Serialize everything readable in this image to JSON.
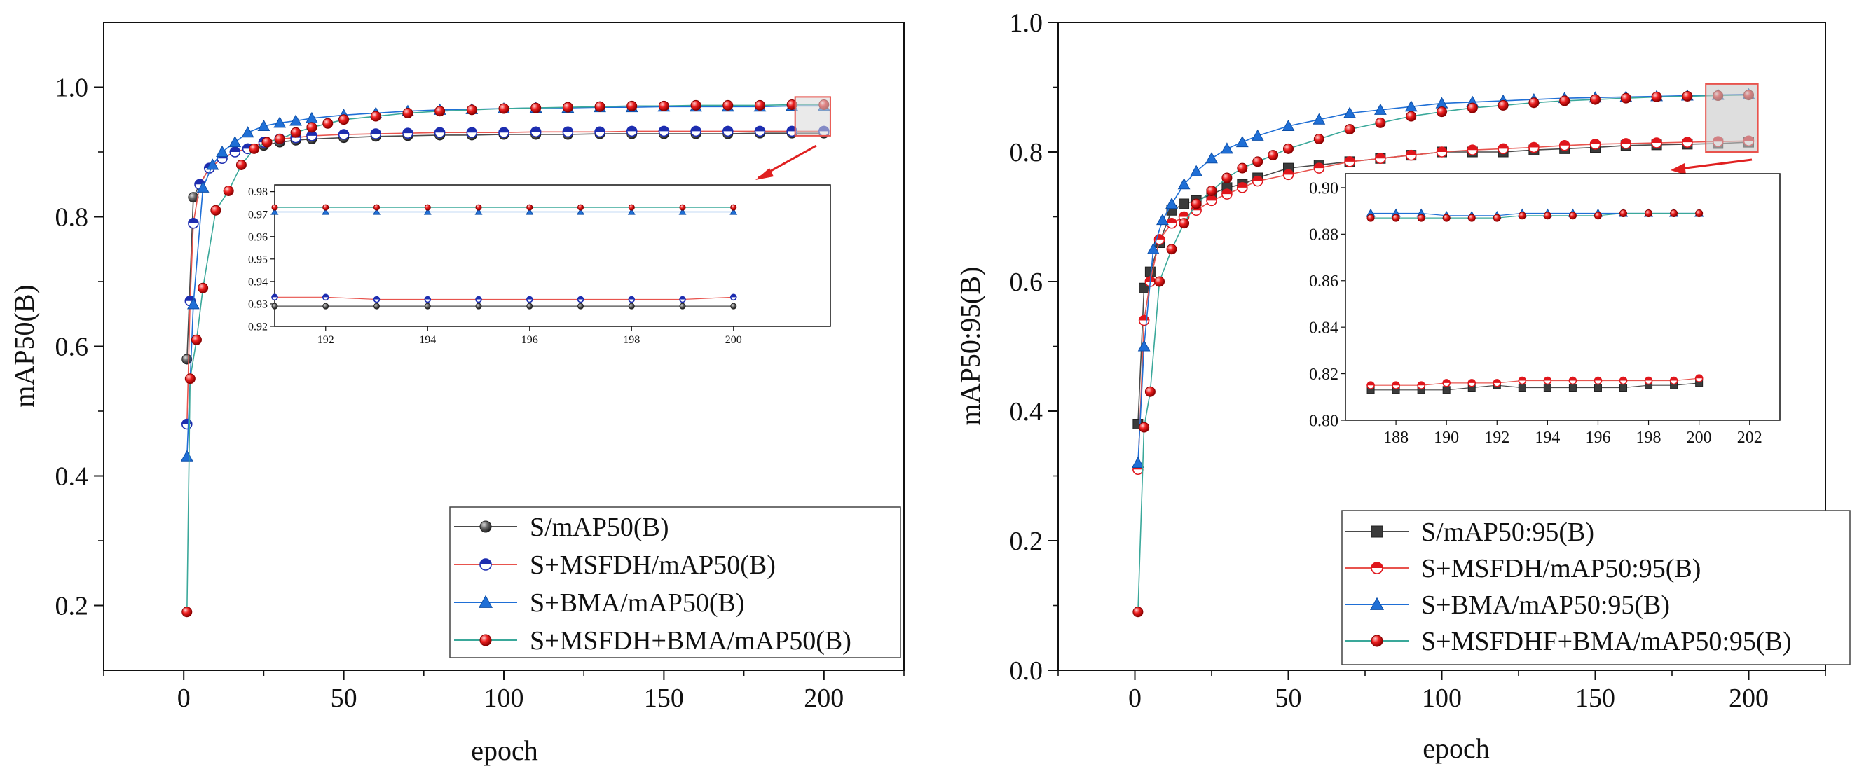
{
  "colors": {
    "s_marker": "#4a4a4a",
    "msfdh_line": "#e8534d",
    "msfdh_marker": "#1d2db0",
    "bma": "#1f6fd6",
    "final_line": "#3aa89a",
    "final_marker": "#e0161c",
    "zoom_box": "#e8534d"
  },
  "chart_data": [
    {
      "type": "line",
      "xlabel": "epoch",
      "ylabel": "mAP50(B)",
      "xlim": [
        -25,
        225
      ],
      "ylim": [
        0.1,
        1.1
      ],
      "xticks": [
        0,
        50,
        100,
        150,
        200
      ],
      "yticks": [
        0.2,
        0.4,
        0.6,
        0.8,
        1.0
      ],
      "xtick_labels": [
        "0",
        "50",
        "100",
        "150",
        "200"
      ],
      "ytick_labels": [
        "0.2",
        "0.4",
        "0.6",
        "0.8",
        "1.0"
      ],
      "legend_position": "bottom-right",
      "series": [
        {
          "name": "S/mAP50(B)",
          "marker": "sphere-gray",
          "x": [
            1,
            3,
            5,
            8,
            12,
            16,
            20,
            25,
            30,
            35,
            40,
            50,
            60,
            70,
            80,
            90,
            100,
            110,
            120,
            130,
            140,
            150,
            160,
            170,
            180,
            190,
            200
          ],
          "y": [
            0.58,
            0.83,
            0.85,
            0.875,
            0.89,
            0.9,
            0.905,
            0.91,
            0.915,
            0.918,
            0.92,
            0.922,
            0.924,
            0.925,
            0.926,
            0.926,
            0.927,
            0.927,
            0.927,
            0.928,
            0.928,
            0.928,
            0.928,
            0.928,
            0.929,
            0.929,
            0.929
          ]
        },
        {
          "name": "S+MSFDH/mAP50(B)",
          "marker": "half-blue",
          "x": [
            1,
            2,
            3,
            5,
            8,
            12,
            16,
            20,
            25,
            30,
            35,
            40,
            50,
            60,
            70,
            80,
            90,
            100,
            110,
            120,
            130,
            140,
            150,
            160,
            170,
            180,
            190,
            200
          ],
          "y": [
            0.48,
            0.67,
            0.79,
            0.85,
            0.875,
            0.89,
            0.9,
            0.905,
            0.915,
            0.92,
            0.922,
            0.925,
            0.927,
            0.928,
            0.929,
            0.93,
            0.93,
            0.93,
            0.931,
            0.931,
            0.931,
            0.932,
            0.932,
            0.932,
            0.932,
            0.932,
            0.932,
            0.932
          ]
        },
        {
          "name": "S+BMA/mAP50(B)",
          "marker": "triangle-blue",
          "x": [
            1,
            3,
            6,
            9,
            12,
            16,
            20,
            25,
            30,
            35,
            40,
            50,
            60,
            70,
            80,
            90,
            100,
            110,
            120,
            130,
            140,
            150,
            160,
            170,
            180,
            190,
            200
          ],
          "y": [
            0.43,
            0.665,
            0.845,
            0.88,
            0.9,
            0.915,
            0.93,
            0.94,
            0.945,
            0.948,
            0.952,
            0.957,
            0.96,
            0.963,
            0.965,
            0.966,
            0.967,
            0.968,
            0.968,
            0.969,
            0.969,
            0.97,
            0.97,
            0.97,
            0.97,
            0.971,
            0.971
          ]
        },
        {
          "name": "S+MSFDH+BMA/mAP50(B)",
          "marker": "sphere-red",
          "x": [
            1,
            2,
            4,
            6,
            10,
            14,
            18,
            22,
            26,
            30,
            35,
            40,
            45,
            50,
            60,
            70,
            80,
            90,
            100,
            110,
            120,
            130,
            140,
            150,
            160,
            170,
            180,
            190,
            200
          ],
          "y": [
            0.19,
            0.55,
            0.61,
            0.69,
            0.81,
            0.84,
            0.88,
            0.905,
            0.915,
            0.92,
            0.93,
            0.938,
            0.944,
            0.95,
            0.955,
            0.96,
            0.963,
            0.965,
            0.967,
            0.968,
            0.969,
            0.97,
            0.971,
            0.971,
            0.972,
            0.972,
            0.972,
            0.973,
            0.973
          ]
        }
      ],
      "inset": {
        "xlim": [
          191,
          201.9
        ],
        "ylim": [
          0.92,
          0.983
        ],
        "xticks": [
          192,
          194,
          196,
          198,
          200
        ],
        "yticks": [
          0.92,
          0.93,
          0.94,
          0.95,
          0.96,
          0.97,
          0.98
        ],
        "xtick_labels": [
          "192",
          "194",
          "196",
          "198",
          "200"
        ],
        "ytick_labels": [
          "0.92",
          "0.93",
          "0.94",
          "0.95",
          "0.96",
          "0.97",
          "0.98"
        ],
        "x": [
          191,
          192,
          193,
          194,
          195,
          196,
          197,
          198,
          199,
          200
        ],
        "series_y": [
          [
            0.929,
            0.929,
            0.929,
            0.929,
            0.929,
            0.929,
            0.929,
            0.929,
            0.929,
            0.929
          ],
          [
            0.933,
            0.933,
            0.932,
            0.932,
            0.932,
            0.932,
            0.932,
            0.932,
            0.932,
            0.933
          ],
          [
            0.971,
            0.971,
            0.971,
            0.971,
            0.971,
            0.971,
            0.971,
            0.971,
            0.971,
            0.971
          ],
          [
            0.973,
            0.973,
            0.973,
            0.973,
            0.973,
            0.973,
            0.973,
            0.973,
            0.973,
            0.973
          ]
        ]
      },
      "zoom_region": {
        "x": [
          191,
          202
        ],
        "y": [
          0.925,
          0.985
        ]
      }
    },
    {
      "type": "line",
      "xlabel": "epoch",
      "ylabel": "mAP50:95(B)",
      "xlim": [
        -25,
        225
      ],
      "ylim": [
        0.0,
        1.0
      ],
      "xticks": [
        0,
        50,
        100,
        150,
        200
      ],
      "yticks": [
        0.0,
        0.2,
        0.4,
        0.6,
        0.8,
        1.0
      ],
      "xtick_labels": [
        "0",
        "50",
        "100",
        "150",
        "200"
      ],
      "ytick_labels": [
        "0.0",
        "0.2",
        "0.4",
        "0.6",
        "0.8",
        "1.0"
      ],
      "legend_position": "bottom-right",
      "series": [
        {
          "name": "S/mAP50:95(B)",
          "marker": "square-gray",
          "x": [
            1,
            3,
            5,
            8,
            12,
            16,
            20,
            25,
            30,
            35,
            40,
            50,
            60,
            70,
            80,
            90,
            100,
            110,
            120,
            130,
            140,
            150,
            160,
            170,
            180,
            190,
            200
          ],
          "y": [
            0.38,
            0.59,
            0.615,
            0.66,
            0.71,
            0.72,
            0.725,
            0.735,
            0.745,
            0.75,
            0.76,
            0.775,
            0.78,
            0.785,
            0.79,
            0.795,
            0.8,
            0.8,
            0.8,
            0.803,
            0.805,
            0.807,
            0.81,
            0.811,
            0.812,
            0.813,
            0.815
          ]
        },
        {
          "name": "S+MSFDH/mAP50:95(B)",
          "marker": "half-red",
          "x": [
            1,
            3,
            5,
            8,
            12,
            16,
            20,
            25,
            30,
            35,
            40,
            50,
            60,
            70,
            80,
            90,
            100,
            110,
            120,
            130,
            140,
            150,
            160,
            170,
            180,
            190,
            200
          ],
          "y": [
            0.31,
            0.54,
            0.6,
            0.665,
            0.69,
            0.7,
            0.71,
            0.725,
            0.735,
            0.745,
            0.755,
            0.765,
            0.775,
            0.785,
            0.79,
            0.795,
            0.8,
            0.803,
            0.805,
            0.807,
            0.81,
            0.812,
            0.813,
            0.814,
            0.815,
            0.816,
            0.817
          ]
        },
        {
          "name": "S+BMA/mAP50:95(B)",
          "marker": "triangle-blue",
          "x": [
            1,
            3,
            6,
            9,
            12,
            16,
            20,
            25,
            30,
            35,
            40,
            50,
            60,
            70,
            80,
            90,
            100,
            110,
            120,
            130,
            140,
            150,
            160,
            170,
            180,
            190,
            200
          ],
          "y": [
            0.32,
            0.5,
            0.65,
            0.695,
            0.72,
            0.75,
            0.77,
            0.79,
            0.805,
            0.815,
            0.825,
            0.84,
            0.85,
            0.86,
            0.865,
            0.87,
            0.875,
            0.877,
            0.879,
            0.881,
            0.883,
            0.884,
            0.885,
            0.886,
            0.887,
            0.888,
            0.889
          ]
        },
        {
          "name": "S+MSFDHF+BMA/mAP50:95(B)",
          "marker": "sphere-red",
          "x": [
            1,
            3,
            5,
            8,
            12,
            16,
            20,
            25,
            30,
            35,
            40,
            45,
            50,
            60,
            70,
            80,
            90,
            100,
            110,
            120,
            130,
            140,
            150,
            160,
            170,
            180,
            190,
            200
          ],
          "y": [
            0.09,
            0.375,
            0.43,
            0.6,
            0.65,
            0.69,
            0.72,
            0.74,
            0.76,
            0.775,
            0.785,
            0.795,
            0.805,
            0.82,
            0.835,
            0.845,
            0.855,
            0.862,
            0.868,
            0.872,
            0.876,
            0.879,
            0.881,
            0.883,
            0.885,
            0.886,
            0.887,
            0.888
          ]
        }
      ],
      "inset": {
        "xlim": [
          186,
          203.2
        ],
        "ylim": [
          0.8,
          0.906
        ],
        "xticks": [
          188,
          190,
          192,
          194,
          196,
          198,
          200,
          202
        ],
        "yticks": [
          0.8,
          0.82,
          0.84,
          0.86,
          0.88,
          0.9
        ],
        "xtick_labels": [
          "188",
          "190",
          "192",
          "194",
          "196",
          "198",
          "200",
          "202"
        ],
        "ytick_labels": [
          "0.80",
          "0.82",
          "0.84",
          "0.86",
          "0.88",
          "0.90"
        ],
        "x": [
          187,
          188,
          189,
          190,
          191,
          192,
          193,
          194,
          195,
          196,
          197,
          198,
          199,
          200
        ],
        "series_y": [
          [
            0.813,
            0.813,
            0.813,
            0.813,
            0.814,
            0.815,
            0.814,
            0.814,
            0.814,
            0.814,
            0.814,
            0.815,
            0.815,
            0.816
          ],
          [
            0.815,
            0.815,
            0.815,
            0.816,
            0.816,
            0.816,
            0.817,
            0.817,
            0.817,
            0.817,
            0.817,
            0.817,
            0.817,
            0.818
          ],
          [
            0.889,
            0.889,
            0.889,
            0.888,
            0.888,
            0.888,
            0.889,
            0.889,
            0.889,
            0.889,
            0.889,
            0.889,
            0.889,
            0.889
          ],
          [
            0.887,
            0.887,
            0.887,
            0.887,
            0.887,
            0.887,
            0.888,
            0.888,
            0.888,
            0.888,
            0.889,
            0.889,
            0.889,
            0.889
          ]
        ]
      },
      "zoom_region": {
        "x": [
          186,
          203
        ],
        "y": [
          0.8,
          0.905
        ]
      }
    }
  ]
}
